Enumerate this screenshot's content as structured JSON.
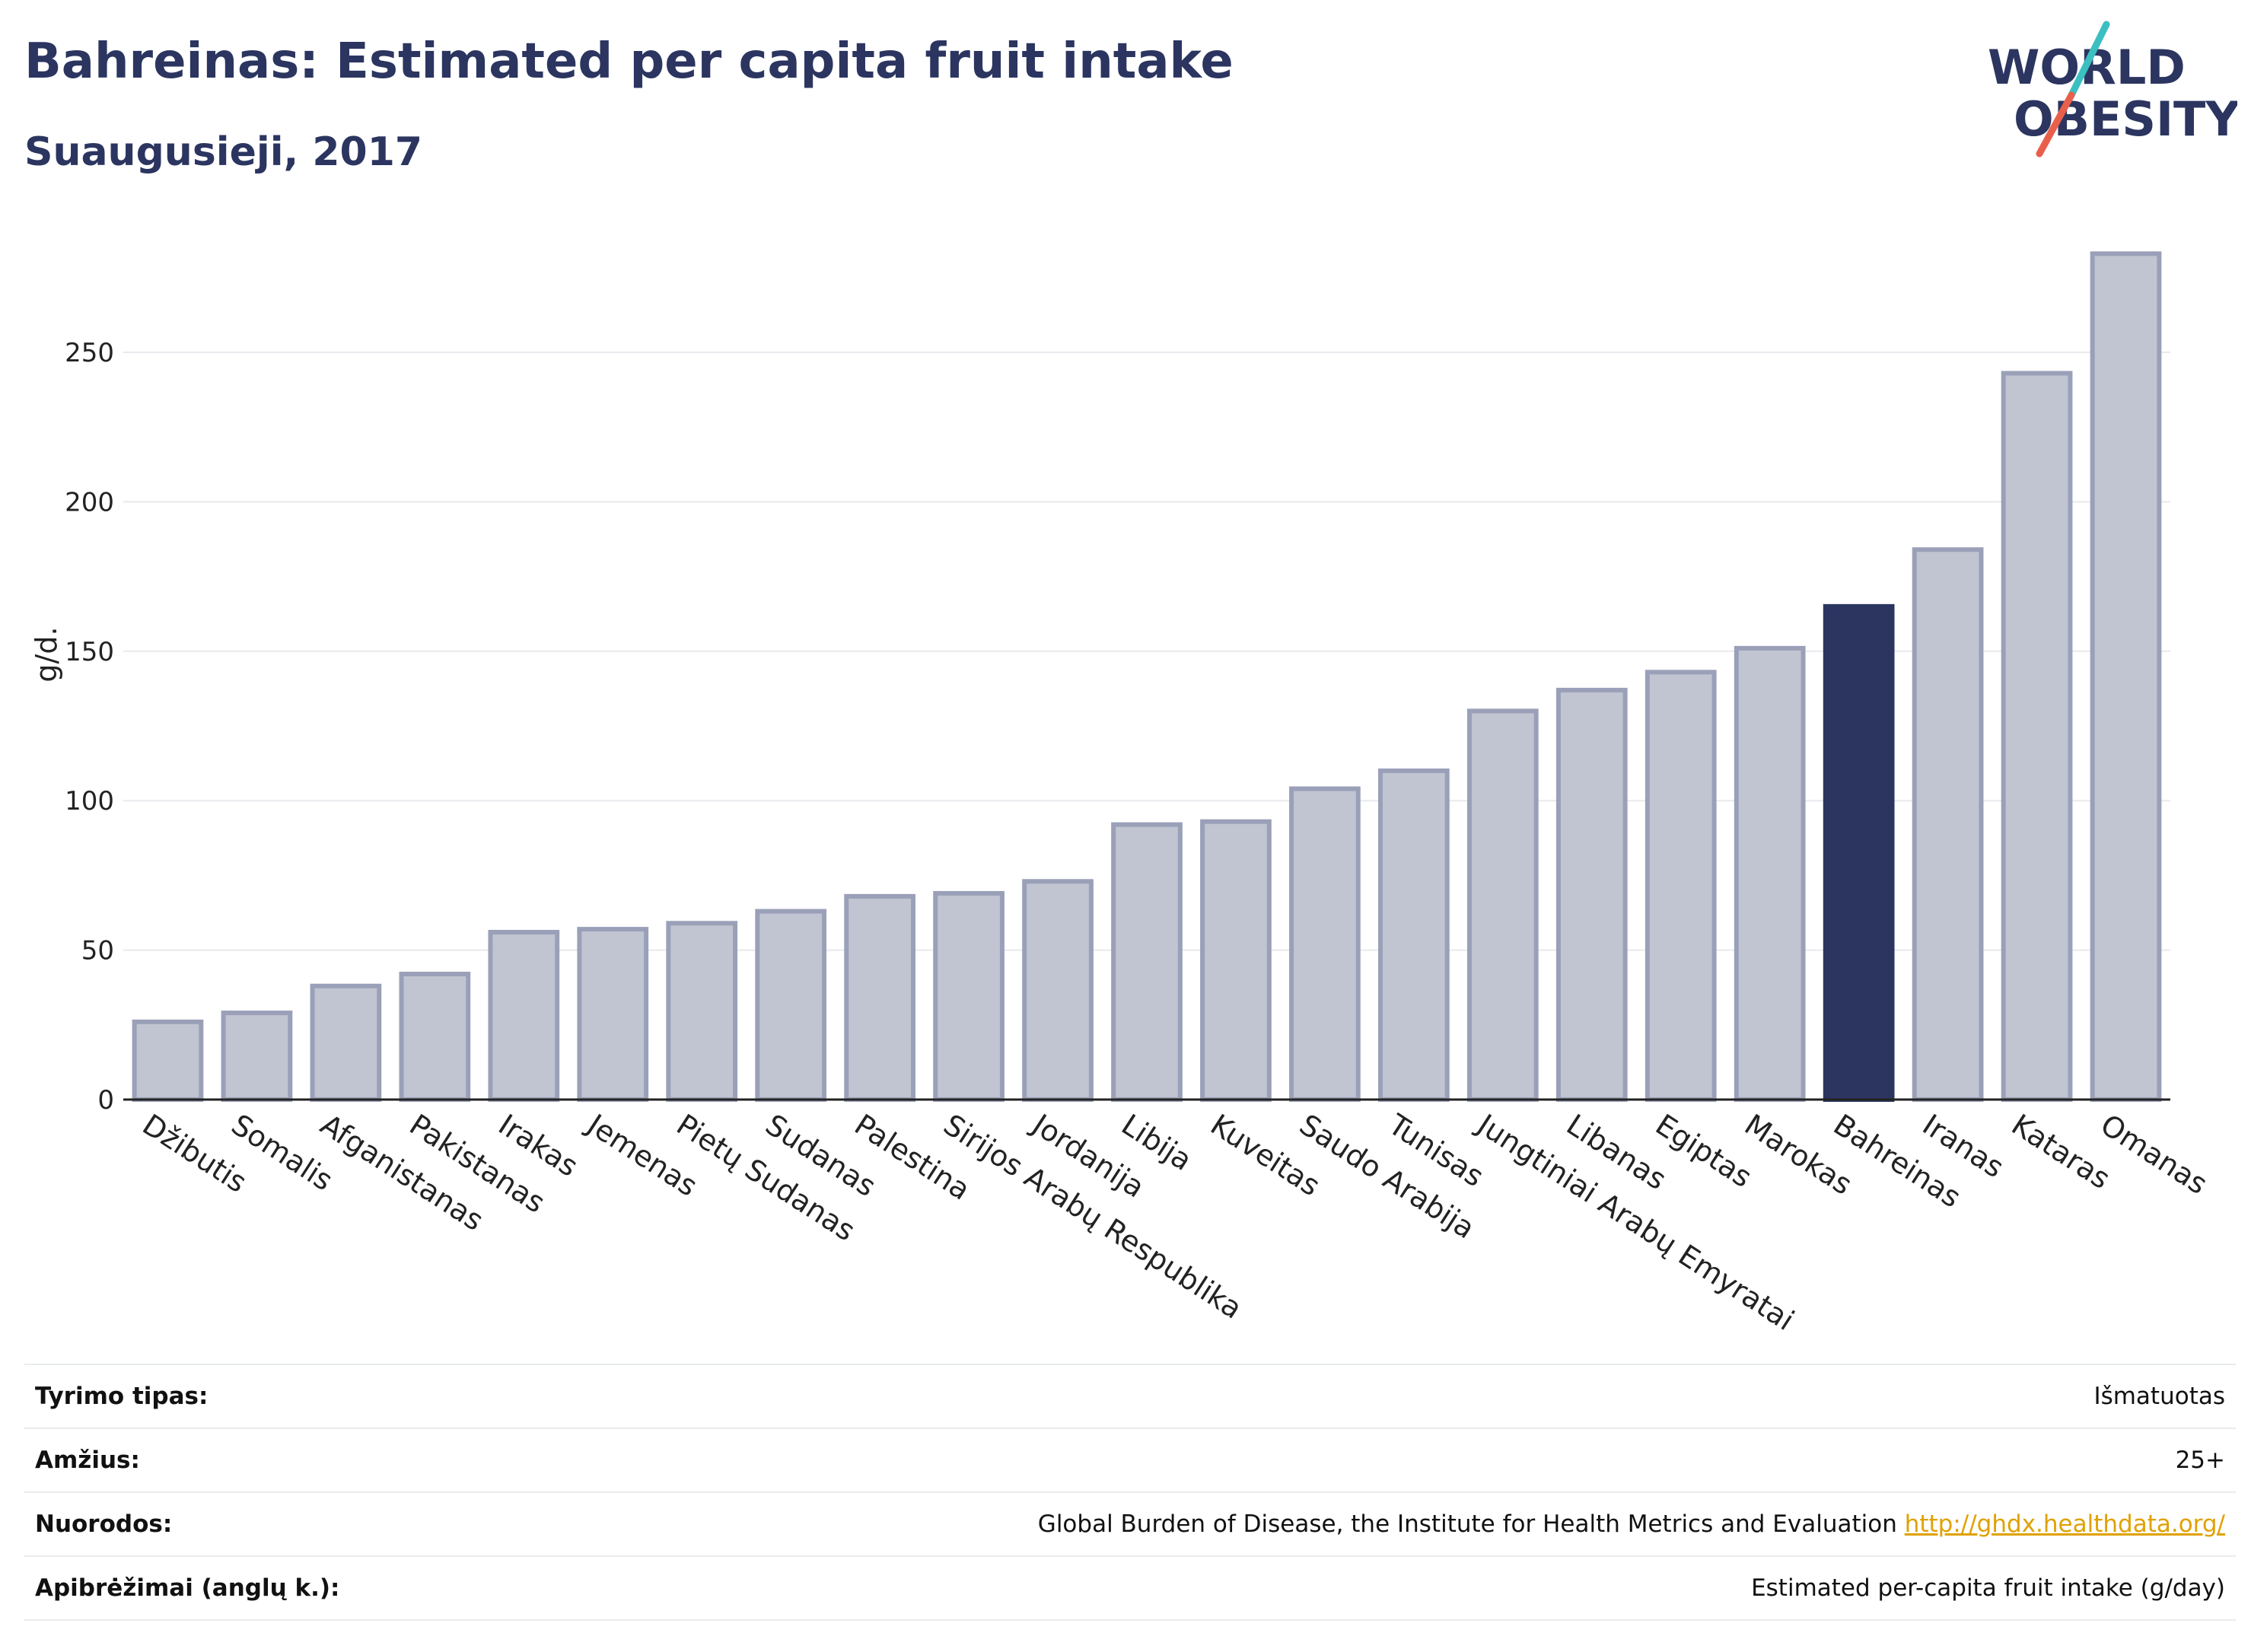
{
  "header": {
    "title": "Bahreinas: Estimated per capita fruit intake",
    "subtitle": "Suaugusieji, 2017"
  },
  "logo": {
    "line1": "WORLD",
    "line2": "OBESITY",
    "accent_teal": "#3bbfc1",
    "accent_red": "#e8604c"
  },
  "colors": {
    "bar": "#c1c4d1",
    "bar_stroke": "#9aa0b8",
    "highlight": "#2b3560",
    "grid": "#e8e9ee"
  },
  "chart_data": {
    "type": "bar",
    "title": "Bahreinas: Estimated per capita fruit intake",
    "subtitle": "Suaugusieji, 2017",
    "ylabel": "g/d.",
    "ylim": [
      0,
      290
    ],
    "yticks": [
      0,
      50,
      100,
      150,
      200,
      250
    ],
    "grid": true,
    "highlight": "Bahreinas",
    "categories": [
      "Džibutis",
      "Somalis",
      "Afganistanas",
      "Pakistanas",
      "Irakas",
      "Jemenas",
      "Pietų Sudanas",
      "Sudanas",
      "Palestina",
      "Sirijos Arabų Respublika",
      "Jordanija",
      "Libija",
      "Kuveitas",
      "Saudo Arabija",
      "Tunisas",
      "Jungtiniai Arabų Emyratai",
      "Libanas",
      "Egiptas",
      "Marokas",
      "Bahreinas",
      "Iranas",
      "Kataras",
      "Omanas"
    ],
    "values": [
      26,
      29,
      38,
      42,
      56,
      57,
      59,
      63,
      68,
      69,
      73,
      92,
      93,
      104,
      110,
      130,
      137,
      143,
      151,
      165,
      184,
      243,
      283
    ]
  },
  "meta": [
    {
      "label": "Tyrimo tipas:",
      "value": "Išmatuotas"
    },
    {
      "label": "Amžius:",
      "value": "25+"
    },
    {
      "label": "Nuorodos:",
      "value": "Global Burden of Disease, the Institute for Health Metrics and Evaluation",
      "link": "http://ghdx.healthdata.org/"
    },
    {
      "label": "Apibrėžimai (anglų k.):",
      "value": "Estimated per-capita fruit intake (g/day)"
    }
  ]
}
